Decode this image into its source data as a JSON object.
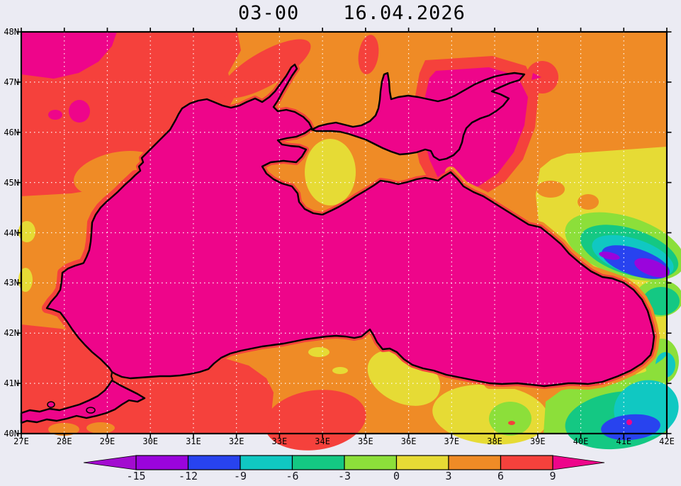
{
  "title": {
    "time_label": "03-00",
    "date_label": "16.04.2026"
  },
  "axes": {
    "x_tick_labels": [
      "27E",
      "28E",
      "29E",
      "30E",
      "31E",
      "32E",
      "33E",
      "34E",
      "35E",
      "36E",
      "37E",
      "38E",
      "39E",
      "40E",
      "41E",
      "42E"
    ],
    "y_tick_labels": [
      "48N",
      "47N",
      "46N",
      "45N",
      "44N",
      "43N",
      "42N",
      "41N",
      "40N"
    ]
  },
  "colorbar": {
    "tick_labels": [
      "-15",
      "-12",
      "-9",
      "-6",
      "-3",
      "0",
      "3",
      "6",
      "9"
    ],
    "segment_colors": [
      "#9A04DC",
      "#2843EF",
      "#10C8C2",
      "#14C883",
      "#8CDF3A",
      "#E6DB35",
      "#EF8B26",
      "#F5413C"
    ],
    "under_arrow_color": "#A30BD0",
    "over_arrow_color": "#EE058A"
  },
  "colors": {
    "background": "#EBEBF3",
    "label": "#000000",
    "grid": "#FFFFFF",
    "frame": "#000000",
    "coastline": "#000000",
    "field": {
      "magenta": "#EE058A",
      "red": "#F5413C",
      "orange": "#EF8B26",
      "yellow": "#E6DB35",
      "yellow_green": "#8CDF3A",
      "green": "#14C883",
      "cyan": "#10C8C2",
      "blue": "#2843EF",
      "purple": "#9A04DC",
      "under": "#A30BD0"
    }
  },
  "chart_data": {
    "type": "heatmap",
    "title": "03-00 16.04.2026",
    "lon_range": [
      27,
      42
    ],
    "lat_range": [
      40,
      48
    ],
    "x_tick_labels": [
      "27E",
      "28E",
      "29E",
      "30E",
      "31E",
      "32E",
      "33E",
      "34E",
      "35E",
      "36E",
      "37E",
      "38E",
      "39E",
      "40E",
      "41E",
      "42E"
    ],
    "y_tick_labels": [
      "48N",
      "47N",
      "46N",
      "45N",
      "44N",
      "43N",
      "42N",
      "41N",
      "40N"
    ],
    "scale_values": [
      -15,
      -12,
      -9,
      -6,
      -3,
      0,
      3,
      6,
      9
    ],
    "scale_band_colors": [
      "#9A04DC",
      "#2843EF",
      "#10C8C2",
      "#14C883",
      "#8CDF3A",
      "#E6DB35",
      "#EF8B26",
      "#F5413C"
    ],
    "under_color": "#A30BD0",
    "over_color": "#EE058A",
    "grid": "white dotted graticule every 1 degree",
    "features": [
      "Black Sea, Sea of Azov and Sea of Marmara filled uniform magenta (value above 9)",
      "Land mostly orange (3 to 6) with red regions (6 to 9) over the northwest, west coast and around Marmara",
      "Magenta land patches at top-left corner and east of the Sea of Azov with red rims",
      "Yellow patch (0 to 3) over central Crimea and over parts of Turkey",
      "Cold pocket over the Caucasus around 39.5-42E 43-44.5N: yellow-green, green, cyan, blue cores with purple centers (below -12)",
      "Second cold pocket at bottom-right around 40-42E 40-40.7N: green, cyan and blue",
      "Thin red fringe along most coasts, orange band along the northeast coast"
    ]
  }
}
